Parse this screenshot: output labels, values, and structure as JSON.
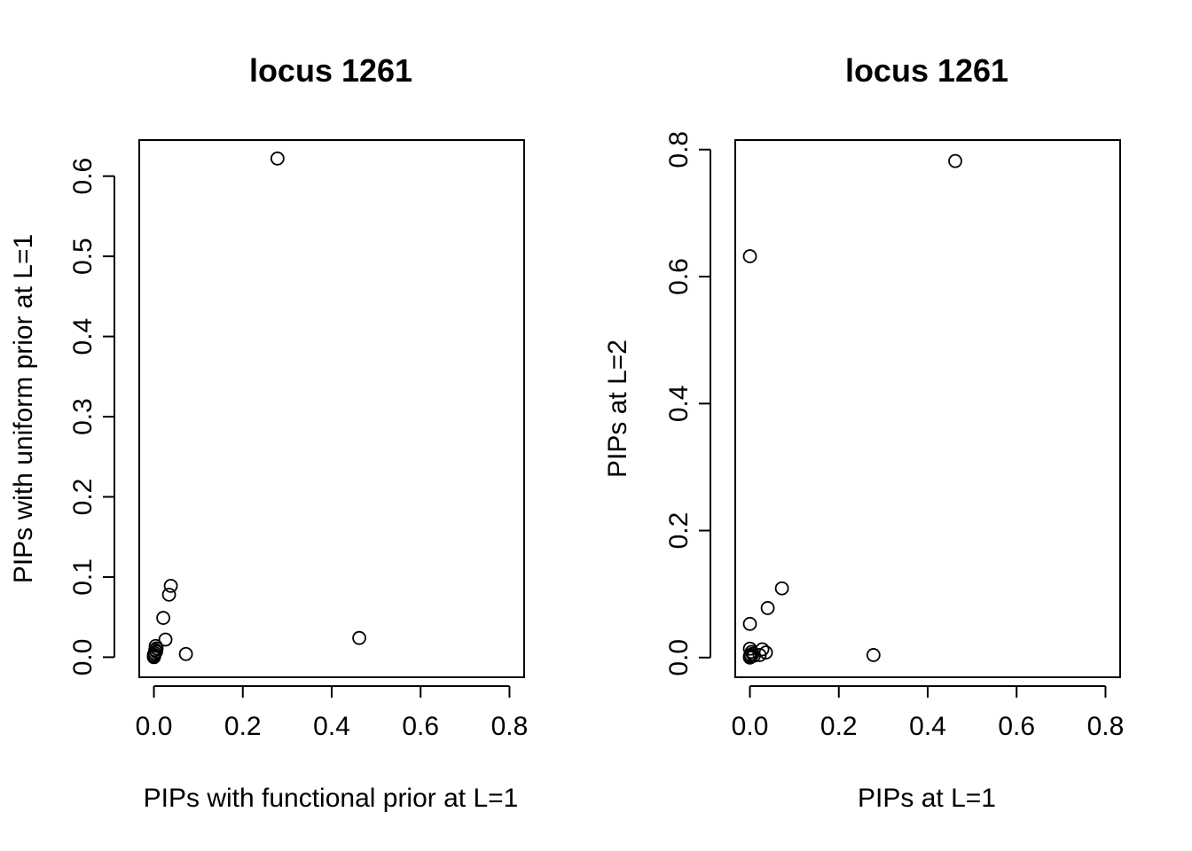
{
  "chart_data": [
    {
      "type": "scatter",
      "title": "locus 1261",
      "xlabel": "PIPs with functional prior at L=1",
      "ylabel": "PIPs with uniform prior at L=1",
      "xlim": [
        -0.033,
        0.833
      ],
      "ylim": [
        -0.025,
        0.645
      ],
      "xticks": [
        "0.0",
        "0.2",
        "0.4",
        "0.6",
        "0.8"
      ],
      "yticks": [
        "0.0",
        "0.1",
        "0.2",
        "0.3",
        "0.4",
        "0.5",
        "0.6"
      ],
      "grid": false,
      "points": [
        {
          "x": 0.278,
          "y": 0.622
        },
        {
          "x": 0.462,
          "y": 0.024
        },
        {
          "x": 0.072,
          "y": 0.004
        },
        {
          "x": 0.038,
          "y": 0.089
        },
        {
          "x": 0.034,
          "y": 0.078
        },
        {
          "x": 0.021,
          "y": 0.049
        },
        {
          "x": 0.026,
          "y": 0.022
        },
        {
          "x": 0.004,
          "y": 0.014
        },
        {
          "x": 0.006,
          "y": 0.011
        },
        {
          "x": 0.003,
          "y": 0.009
        },
        {
          "x": 0.005,
          "y": 0.007
        },
        {
          "x": 0.002,
          "y": 0.005
        },
        {
          "x": 0.0,
          "y": 0.003
        },
        {
          "x": 0.001,
          "y": 0.002
        },
        {
          "x": 0.0,
          "y": 0.001
        },
        {
          "x": 0.0,
          "y": 0.0
        }
      ]
    },
    {
      "type": "scatter",
      "title": "locus 1261",
      "xlabel": "PIPs at L=1",
      "ylabel": "PIPs at L=2",
      "xlim": [
        -0.033,
        0.833
      ],
      "ylim": [
        -0.031,
        0.815
      ],
      "xticks": [
        "0.0",
        "0.2",
        "0.4",
        "0.6",
        "0.8"
      ],
      "yticks": [
        "0.0",
        "0.2",
        "0.4",
        "0.6",
        "0.8"
      ],
      "grid": false,
      "points": [
        {
          "x": 0.462,
          "y": 0.782
        },
        {
          "x": 0.0,
          "y": 0.632
        },
        {
          "x": 0.072,
          "y": 0.109
        },
        {
          "x": 0.04,
          "y": 0.078
        },
        {
          "x": 0.0,
          "y": 0.053
        },
        {
          "x": 0.278,
          "y": 0.004
        },
        {
          "x": 0.028,
          "y": 0.013
        },
        {
          "x": 0.036,
          "y": 0.008
        },
        {
          "x": 0.022,
          "y": 0.004
        },
        {
          "x": 0.0,
          "y": 0.014
        },
        {
          "x": 0.004,
          "y": 0.009
        },
        {
          "x": 0.006,
          "y": 0.006
        },
        {
          "x": 0.002,
          "y": 0.004
        },
        {
          "x": 0.0,
          "y": 0.002
        },
        {
          "x": 0.0,
          "y": 0.0
        },
        {
          "x": 0.009,
          "y": 0.003
        }
      ]
    }
  ]
}
